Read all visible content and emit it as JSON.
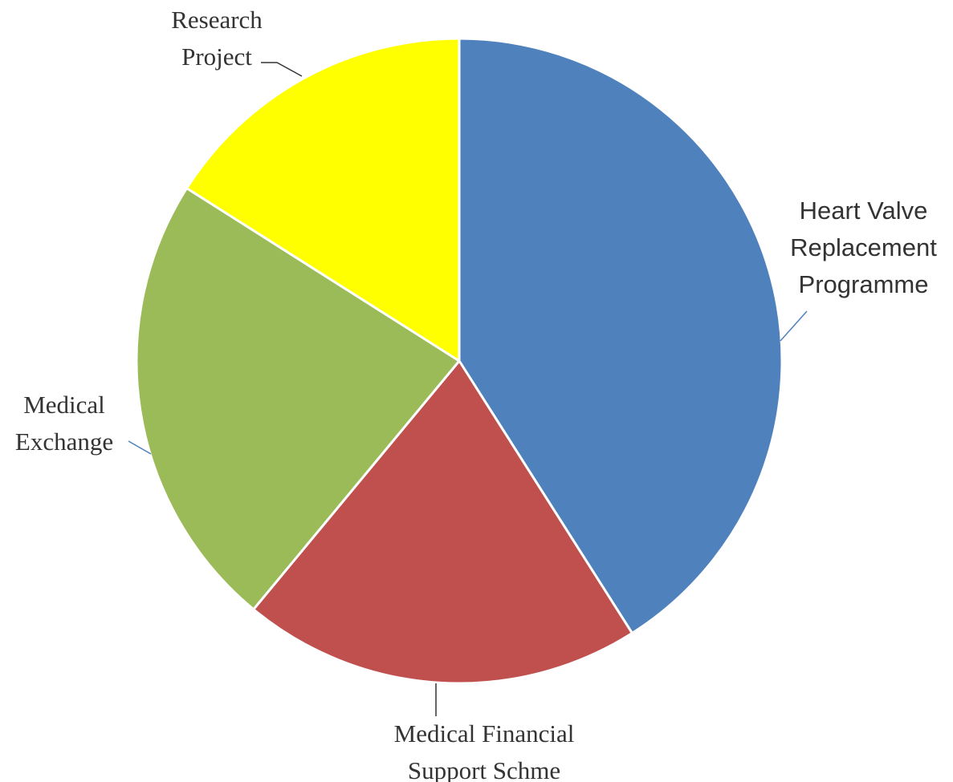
{
  "chart_data": {
    "type": "pie",
    "categories": [
      "Heart Valve Replacement Programme",
      "Medical Financial Support Schme",
      "Medical Exchange",
      "Research Project"
    ],
    "values": [
      41,
      20,
      23,
      16
    ],
    "colors": [
      "#4f81bd",
      "#c0504d",
      "#9bbb59",
      "#ffff00"
    ]
  }
}
